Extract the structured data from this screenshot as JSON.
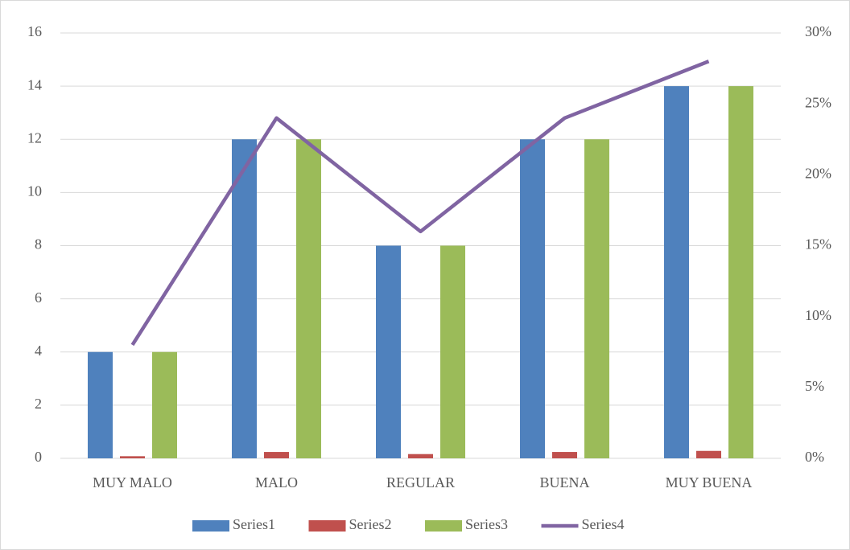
{
  "chart_data": {
    "type": "bar",
    "categories": [
      "MUY MALO",
      "MALO",
      "REGULAR",
      "BUENA",
      "MUY BUENA"
    ],
    "series": [
      {
        "name": "Series1",
        "color": "#4f81bd",
        "values": [
          4,
          12,
          8,
          12,
          14
        ]
      },
      {
        "name": "Series2",
        "color": "#c0504d",
        "values": [
          0.08,
          0.24,
          0.16,
          0.24,
          0.28
        ]
      },
      {
        "name": "Series3",
        "color": "#9bbb59",
        "values": [
          4,
          12,
          8,
          12,
          14
        ]
      },
      {
        "name": "Series4",
        "color": "#8064a2",
        "type": "line",
        "axis": "y2",
        "values": [
          8,
          24,
          16,
          24,
          28
        ]
      }
    ],
    "ylim": [
      0,
      16
    ],
    "yticks": [
      0,
      2,
      4,
      6,
      8,
      10,
      12,
      14,
      16
    ],
    "y2lim": [
      0,
      30
    ],
    "y2ticks": [
      {
        "value": 0,
        "label": "0%"
      },
      {
        "value": 5,
        "label": "5%"
      },
      {
        "value": 10,
        "label": "10%"
      },
      {
        "value": 15,
        "label": "15%"
      },
      {
        "value": 20,
        "label": "20%"
      },
      {
        "value": 25,
        "label": "25%"
      },
      {
        "value": 30,
        "label": "30%"
      }
    ],
    "grid": true,
    "legend": "bottom"
  }
}
